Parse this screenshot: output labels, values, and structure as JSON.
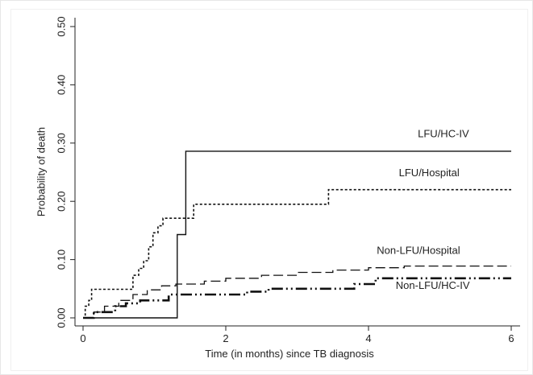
{
  "chart_data": {
    "type": "line",
    "subtype": "step",
    "xlabel": "Time (in months) since TB diagnosis",
    "ylabel": "Probability of death",
    "xlim": [
      0,
      6
    ],
    "ylim": [
      0,
      0.5
    ],
    "xticks": [
      0,
      2,
      4,
      6
    ],
    "xtick_labels": [
      "0",
      "2",
      "4",
      "6"
    ],
    "yticks": [
      0,
      0.1,
      0.2,
      0.3,
      0.4,
      0.5
    ],
    "ytick_labels": [
      "0.00",
      "0.10",
      "0.20",
      "0.30",
      "0.40",
      "0.50"
    ],
    "grid": false,
    "legend": "inline-labels",
    "series": [
      {
        "name": "LFU/HC-IV",
        "style": "solid",
        "x": [
          0,
          1.32,
          1.32,
          1.44,
          1.44,
          6
        ],
        "y": [
          0,
          0,
          0.143,
          0.143,
          0.286,
          0.286
        ]
      },
      {
        "name": "LFU/Hospital",
        "style": "dotted",
        "x": [
          0,
          0.03,
          0.03,
          0.08,
          0.08,
          0.12,
          0.12,
          0.7,
          0.7,
          0.78,
          0.78,
          0.85,
          0.85,
          0.92,
          0.92,
          0.98,
          0.98,
          1.05,
          1.05,
          1.12,
          1.12,
          1.2,
          1.2,
          1.55,
          1.55,
          3.44,
          3.44,
          6
        ],
        "y": [
          0,
          0,
          0.02,
          0.02,
          0.03,
          0.03,
          0.049,
          0.049,
          0.073,
          0.073,
          0.085,
          0.085,
          0.098,
          0.098,
          0.122,
          0.122,
          0.146,
          0.146,
          0.158,
          0.158,
          0.171,
          0.171,
          0.171,
          0.171,
          0.195,
          0.195,
          0.22,
          0.22
        ]
      },
      {
        "name": "Non-LFU/Hospital",
        "style": "dashed",
        "x": [
          0,
          0.15,
          0.15,
          0.3,
          0.3,
          0.5,
          0.5,
          0.7,
          0.7,
          0.9,
          0.9,
          1.1,
          1.1,
          1.3,
          1.3,
          1.7,
          1.7,
          2.0,
          2.0,
          2.5,
          2.5,
          3.0,
          3.0,
          3.5,
          3.5,
          4.0,
          4.0,
          4.5,
          4.5,
          6
        ],
        "y": [
          0,
          0,
          0.01,
          0.01,
          0.02,
          0.02,
          0.03,
          0.03,
          0.04,
          0.04,
          0.048,
          0.048,
          0.055,
          0.055,
          0.058,
          0.058,
          0.063,
          0.063,
          0.068,
          0.068,
          0.073,
          0.073,
          0.078,
          0.078,
          0.082,
          0.082,
          0.086,
          0.086,
          0.089,
          0.089
        ]
      },
      {
        "name": "Non-LFU/HC-IV",
        "style": "dash-dot-thick",
        "x": [
          0,
          0.15,
          0.15,
          0.45,
          0.45,
          0.6,
          0.6,
          0.8,
          0.8,
          1.2,
          1.2,
          2.3,
          2.3,
          2.6,
          2.6,
          3.8,
          3.8,
          4.1,
          4.1,
          6
        ],
        "y": [
          0,
          0,
          0.01,
          0.01,
          0.02,
          0.02,
          0.025,
          0.025,
          0.03,
          0.03,
          0.04,
          0.04,
          0.045,
          0.045,
          0.05,
          0.05,
          0.058,
          0.058,
          0.068,
          0.068
        ]
      }
    ],
    "labels": [
      {
        "series": "LFU/HC-IV",
        "text": "LFU/HC-IV",
        "x": 5.05,
        "y": 0.31
      },
      {
        "series": "LFU/Hospital",
        "text": "LFU/Hospital",
        "x": 4.85,
        "y": 0.243
      },
      {
        "series": "Non-LFU/Hospital",
        "text": "Non-LFU/Hospital",
        "x": 4.7,
        "y": 0.11
      },
      {
        "series": "Non-LFU/HC-IV",
        "text": "Non-LFU/HC-IV",
        "x": 4.9,
        "y": 0.05
      }
    ]
  }
}
